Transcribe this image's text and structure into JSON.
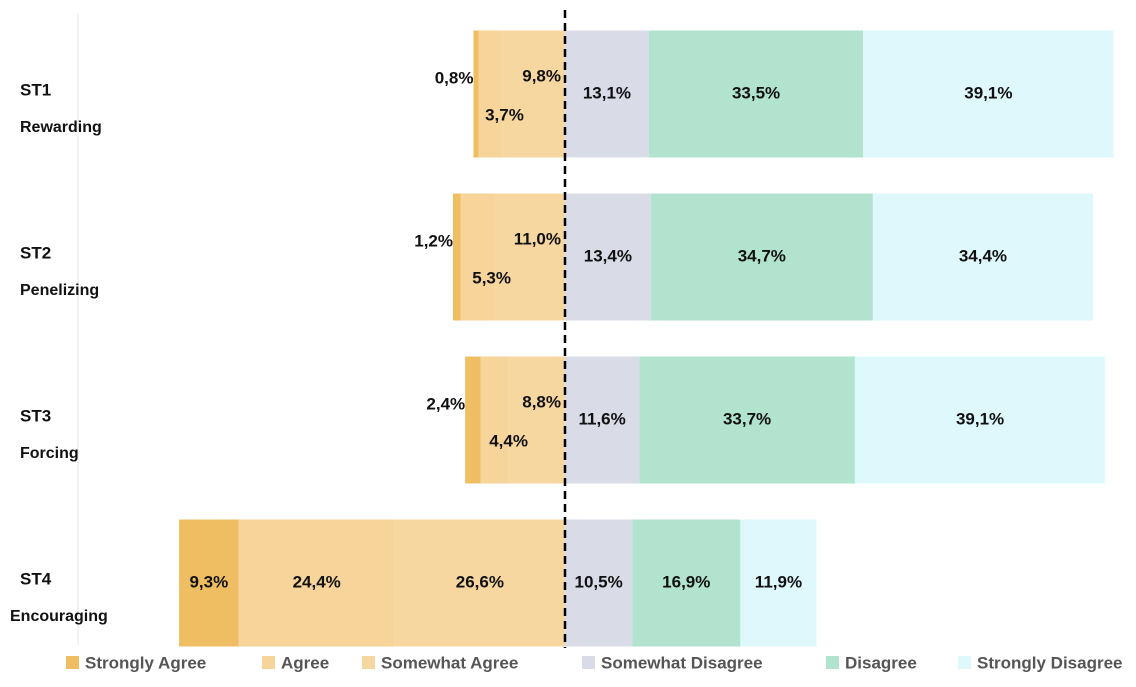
{
  "chart_data": {
    "type": "diverging-stacked-bar",
    "categories": [
      "ST1",
      "ST2",
      "ST3",
      "ST4"
    ],
    "category_descriptions": [
      "Rewarding",
      "Penelizing",
      "Forcing",
      "Encouraging"
    ],
    "series": [
      {
        "name": "Strongly Agree",
        "color": "#f0be62",
        "side": "left",
        "values": [
          0.8,
          1.2,
          2.4,
          9.3
        ],
        "value_labels": [
          "0,8%",
          "1,2%",
          "2,4%",
          "9,3%"
        ]
      },
      {
        "name": "Agree",
        "color": "#f6d49a",
        "side": "left",
        "values": [
          3.7,
          5.3,
          4.4,
          24.4
        ],
        "value_labels": [
          "3,7%",
          "5,3%",
          "4,4%",
          "24,4%"
        ]
      },
      {
        "name": "Somewhat Agree",
        "color": "#f7d7a0",
        "side": "left",
        "values": [
          9.8,
          11.0,
          8.8,
          26.6
        ],
        "value_labels": [
          "9,8%",
          "11,0%",
          "8,8%",
          "26,6%"
        ]
      },
      {
        "name": "Somewhat Disagree",
        "color": "#d9dbe6",
        "side": "right",
        "values": [
          13.1,
          13.4,
          11.6,
          10.5
        ],
        "value_labels": [
          "13,1%",
          "13,4%",
          "11,6%",
          "10,5%"
        ]
      },
      {
        "name": "Disagree",
        "color": "#b1e3cf",
        "side": "right",
        "values": [
          33.5,
          34.7,
          33.7,
          16.9
        ],
        "value_labels": [
          "33,5%",
          "34,7%",
          "33,7%",
          "16,9%"
        ]
      },
      {
        "name": "Strongly Disagree",
        "color": "#dff8fc",
        "side": "right",
        "values": [
          39.1,
          34.4,
          39.1,
          11.9
        ],
        "value_labels": [
          "39,1%",
          "34,4%",
          "39,1%",
          "11,9%"
        ]
      }
    ]
  }
}
